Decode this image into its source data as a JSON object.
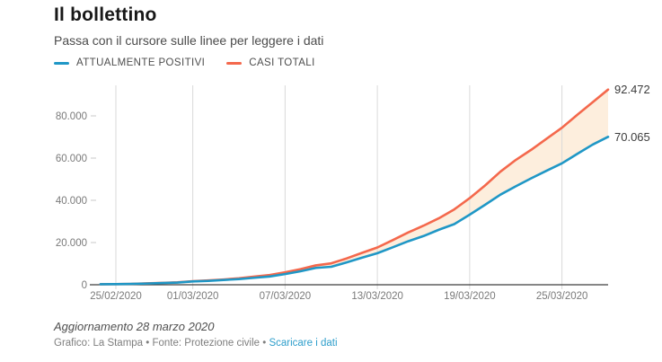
{
  "header": {
    "title": "Il bollettino",
    "subtitle": "Passa con il cursore sulle linee per leggere i dati"
  },
  "legend": {
    "items": [
      {
        "label": "ATTUALMENTE POSITIVI",
        "color": "#1f97c6"
      },
      {
        "label": "CASI TOTALI",
        "color": "#f4684c"
      }
    ]
  },
  "chart_data": {
    "type": "line",
    "title": "Il bollettino",
    "x": [
      "24/02/2020",
      "25/02/2020",
      "26/02/2020",
      "27/02/2020",
      "28/02/2020",
      "29/02/2020",
      "01/03/2020",
      "02/03/2020",
      "03/03/2020",
      "04/03/2020",
      "05/03/2020",
      "06/03/2020",
      "07/03/2020",
      "08/03/2020",
      "09/03/2020",
      "10/03/2020",
      "11/03/2020",
      "12/03/2020",
      "13/03/2020",
      "14/03/2020",
      "15/03/2020",
      "16/03/2020",
      "17/03/2020",
      "18/03/2020",
      "19/03/2020",
      "20/03/2020",
      "21/03/2020",
      "22/03/2020",
      "23/03/2020",
      "24/03/2020",
      "25/03/2020",
      "26/03/2020",
      "27/03/2020",
      "28/03/2020"
    ],
    "series": [
      {
        "name": "ATTUALMENTE POSITIVI",
        "color": "#1f97c6",
        "values": [
          221,
          311,
          385,
          588,
          821,
          1049,
          1577,
          1835,
          2263,
          2706,
          3296,
          3916,
          5061,
          6387,
          7985,
          8514,
          10590,
          12839,
          14955,
          17750,
          20603,
          23073,
          26062,
          28710,
          33190,
          37860,
          42681,
          46638,
          50418,
          54030,
          57521,
          62013,
          66414,
          70065
        ]
      },
      {
        "name": "CASI TOTALI",
        "color": "#f4684c",
        "values": [
          229,
          322,
          400,
          650,
          888,
          1128,
          1694,
          2036,
          2502,
          3089,
          3858,
          4636,
          5883,
          7375,
          9172,
          10149,
          12462,
          15113,
          17660,
          21157,
          24747,
          27980,
          31506,
          35713,
          41035,
          47021,
          53578,
          59138,
          63927,
          69176,
          74386,
          80539,
          86498,
          92472
        ]
      }
    ],
    "x_tick_indices": [
      1,
      6,
      12,
      18,
      24,
      30
    ],
    "x_tick_labels": [
      "25/02/2020",
      "01/03/2020",
      "07/03/2020",
      "13/03/2020",
      "19/03/2020",
      "25/03/2020"
    ],
    "y_ticks": {
      "values": [
        0,
        20000,
        40000,
        60000,
        80000
      ],
      "labels": [
        "0",
        "20.000",
        "40.000",
        "60.000",
        "80.000"
      ]
    },
    "ylim": [
      0,
      94468
    ],
    "xlabel": "",
    "ylabel": "",
    "grid": "vertical-only",
    "legend_position": "top-left",
    "fill_between_color": "#fdeedd",
    "end_labels": [
      {
        "series": "CASI TOTALI",
        "text": "92.472"
      },
      {
        "series": "ATTUALMENTE POSITIVI",
        "text": "70.065"
      }
    ],
    "colors": {
      "gridline": "#dadada",
      "axis_line": "#3d3d3d",
      "tick_dash": "#c8c8c8",
      "tick_text": "#7a7a7a",
      "end_label_text": "#3c3c3c"
    }
  },
  "footer": {
    "update": "Aggiornamento 28 marzo 2020",
    "credits_prefix": "Grafico: La Stampa • Fonte: Protezione civile • ",
    "link_label": "Scaricare i dati"
  }
}
